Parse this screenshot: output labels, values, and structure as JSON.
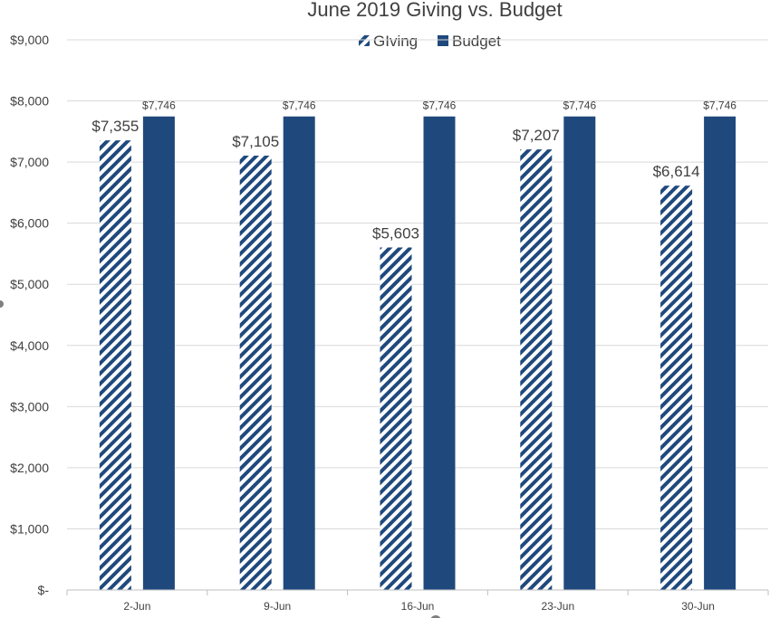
{
  "chart_data": {
    "type": "bar",
    "title": "June 2019 Giving vs. Budget",
    "categories": [
      "2-Jun",
      "9-Jun",
      "16-Jun",
      "23-Jun",
      "30-Jun"
    ],
    "series": [
      {
        "name": "GIving",
        "values": [
          7355,
          7105,
          5603,
          7207,
          6614
        ],
        "labels": [
          "$7,355",
          "$7,105",
          "$5,603",
          "$7,207",
          "$6,614"
        ],
        "fill": "hatched",
        "color": "#1f497d"
      },
      {
        "name": "Budget",
        "values": [
          7746,
          7746,
          7746,
          7746,
          7746
        ],
        "labels": [
          "$7,746",
          "$7,746",
          "$7,746",
          "$7,746",
          "$7,746"
        ],
        "fill": "solid",
        "color": "#1f497d"
      }
    ],
    "yticks": [
      0,
      1000,
      2000,
      3000,
      4000,
      5000,
      6000,
      7000,
      8000,
      9000
    ],
    "ytick_labels": [
      "$-",
      "$1,000",
      "$2,000",
      "$3,000",
      "$4,000",
      "$5,000",
      "$6,000",
      "$7,000",
      "$8,000",
      "$9,000"
    ],
    "ylim": [
      0,
      9000
    ],
    "grid": true,
    "legend": "top-center"
  }
}
